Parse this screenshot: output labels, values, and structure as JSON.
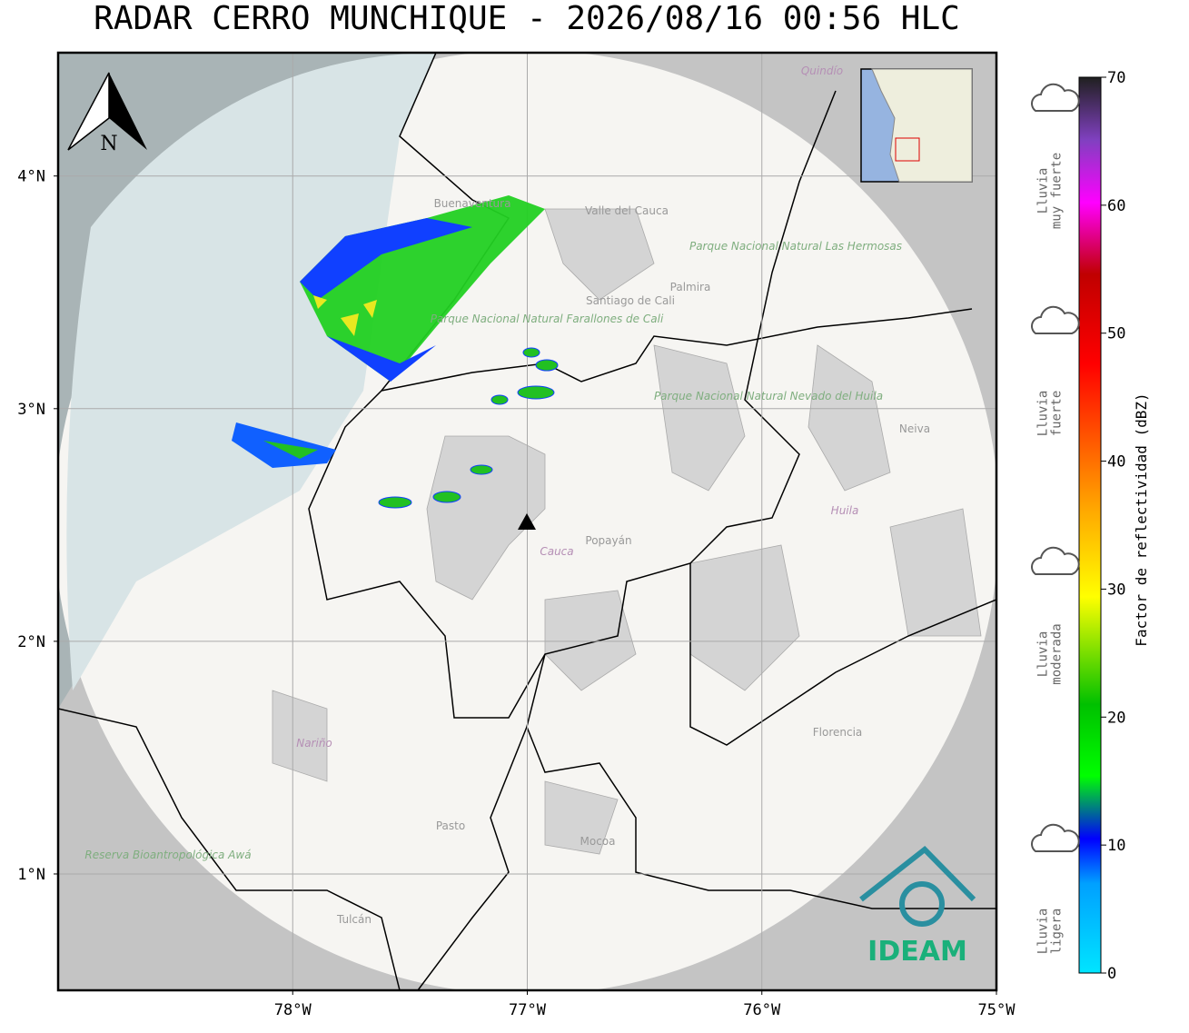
{
  "header": {
    "title": "RADAR CERRO MUNCHIQUE - 2026/08/16 00:56 HLC"
  },
  "map": {
    "xlim": [
      -79,
      -75
    ],
    "ylim": [
      0.5,
      4.53
    ],
    "xticks": [
      {
        "value": -78,
        "label": "78°W"
      },
      {
        "value": -77,
        "label": "77°W"
      },
      {
        "value": -76,
        "label": "76°W"
      },
      {
        "value": -75,
        "label": "75°W"
      }
    ],
    "yticks": [
      {
        "value": 1,
        "label": "1°N"
      },
      {
        "value": 2,
        "label": "2°N"
      },
      {
        "value": 3,
        "label": "3°N"
      },
      {
        "value": 4,
        "label": "4°N"
      }
    ],
    "north": "N",
    "labels": [
      "Quindío",
      "Buenaventura",
      "Valle del Cauca",
      "Palmira",
      "Santiago de Cali",
      "Parque Nacional Natural Farallones de Cali",
      "Parque Nacional Natural Las Hermosas",
      "Parque Nacional Natural Nevado del Huila",
      "Neiva",
      "Huila",
      "Popayán",
      "Cauca",
      "Nariño",
      "Pasto",
      "Mocoa",
      "Florencia",
      "Tulcán",
      "Reserva Bioantropológica Awá"
    ],
    "logo": "IDEAM"
  },
  "colorbar": {
    "label": "Factor de reflectividad (dBZ)",
    "lim": [
      0,
      70
    ],
    "ticks": [
      0,
      10,
      20,
      30,
      40,
      50,
      60,
      70
    ],
    "categories": [
      [
        "Lluvia",
        "muy fuerte"
      ],
      [
        "Lluvia",
        "fuerte"
      ],
      [
        "Lluvia",
        "moderada"
      ],
      [
        "Lluvia",
        "ligera"
      ]
    ]
  }
}
